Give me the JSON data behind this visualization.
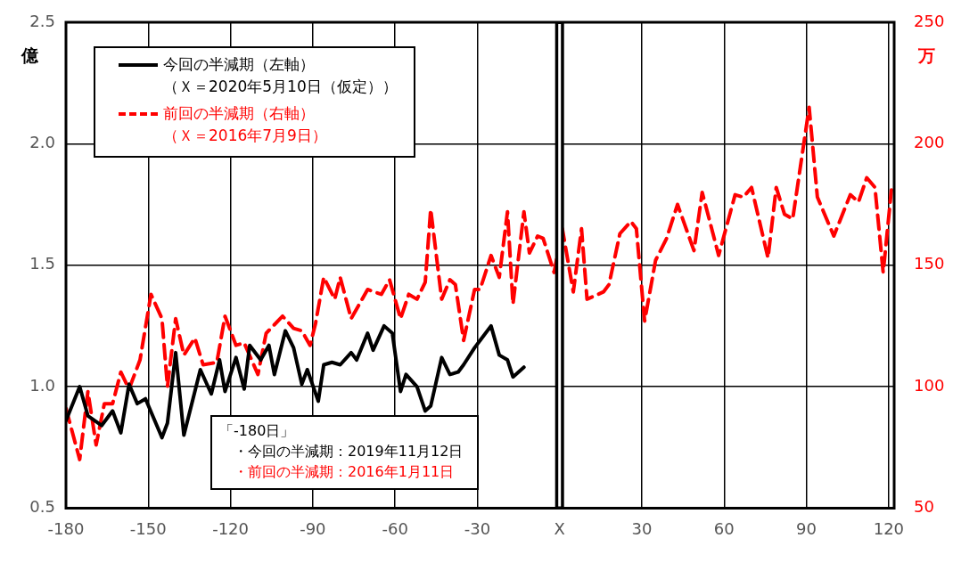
{
  "chart_data": {
    "type": "line",
    "ylabel": "億",
    "y2label": "万",
    "xlim": [
      -180,
      122
    ],
    "xticks": [
      -180,
      -150,
      -120,
      -90,
      -60,
      -30,
      {
        "value": 0,
        "label": "X"
      },
      30,
      60,
      90,
      120
    ],
    "ylim": [
      0.5,
      2.5
    ],
    "yticks": [
      0.5,
      {
        "value": 1,
        "label": "1.0"
      },
      1.5,
      {
        "value": 2,
        "label": "2.0"
      },
      2.5
    ],
    "y2lim": [
      50,
      250
    ],
    "y2ticks": [
      50,
      100,
      150,
      200,
      250
    ],
    "grid": true,
    "legend": "top left",
    "marker": "none",
    "ref_lines": [
      {
        "axis": "x",
        "value": 0,
        "color": "#000000"
      }
    ],
    "annotations": [
      "（Ｘ＝2020年5月10日（仮定））",
      "（Ｘ＝2016年7月9日）",
      "「-180日」",
      "・今回の半減期：2019年11月12日",
      "・前回の半減期：2016年1月11日"
    ],
    "series": [
      {
        "name": "今回の半減期（左軸）",
        "color": "#000000",
        "line_style": "solid",
        "x": [
          -180,
          -175,
          -172,
          -167,
          -163,
          -160,
          -157,
          -154,
          -151,
          -145,
          -143,
          -140,
          -137,
          -131,
          -127,
          -124,
          -122,
          -118,
          -115,
          -113,
          -109,
          -106,
          -104,
          -100,
          -97,
          -94,
          -92,
          -88,
          -86,
          -83,
          -80,
          -76,
          -74,
          -70,
          -68,
          -64,
          -61,
          -58,
          -56,
          -52,
          -49,
          -47,
          -43,
          -40,
          -37,
          -35,
          -31,
          -29,
          -25,
          -22,
          -19,
          -17,
          -13
        ],
        "values": [
          0.86,
          1.0,
          0.88,
          0.84,
          0.9,
          0.81,
          1.01,
          0.93,
          0.95,
          0.79,
          0.85,
          1.14,
          0.8,
          1.07,
          0.97,
          1.11,
          0.98,
          1.12,
          0.99,
          1.17,
          1.11,
          1.17,
          1.05,
          1.23,
          1.16,
          1.01,
          1.07,
          0.94,
          1.09,
          1.1,
          1.09,
          1.14,
          1.11,
          1.22,
          1.15,
          1.25,
          1.22,
          0.98,
          1.05,
          1.0,
          0.9,
          0.92,
          1.12,
          1.05,
          1.06,
          1.09,
          1.16,
          1.19,
          1.25,
          1.13,
          1.11,
          1.04,
          1.08
        ]
      },
      {
        "name": "前回の半減期（右軸）",
        "color": "#ff0000",
        "line_style": "dashed",
        "axis": "y2",
        "x": [
          -180,
          -175,
          -172,
          -169,
          -166,
          -163,
          -160,
          -157,
          -153,
          -149,
          -145,
          -143,
          -140,
          -137,
          -133,
          -130,
          -125,
          -122,
          -118,
          -115,
          -110,
          -107,
          -101,
          -97,
          -94,
          -91,
          -89,
          -86,
          -82,
          -80,
          -76,
          -70,
          -65,
          -62,
          -58,
          -55,
          -52,
          -49,
          -47,
          -43,
          -40,
          -38,
          -35,
          -31,
          -29,
          -25,
          -22,
          -19,
          -17,
          -13,
          -11,
          -8,
          -6,
          -2,
          1,
          5,
          8,
          10,
          16,
          18,
          22,
          26,
          28,
          31,
          35,
          39,
          43,
          49,
          52,
          58,
          64,
          67,
          70,
          76,
          79,
          82,
          85,
          91,
          94,
          100,
          106,
          109,
          112,
          115,
          118,
          121
        ],
        "values": [
          91,
          70,
          98,
          76,
          93,
          93,
          106,
          99,
          111,
          138,
          128,
          100,
          128,
          113,
          120,
          109,
          110,
          129,
          117,
          118,
          105,
          122,
          129,
          124,
          123,
          117,
          126,
          145,
          136,
          145,
          128,
          140,
          138,
          144,
          128,
          138,
          136,
          143,
          173,
          136,
          144,
          142,
          119,
          140,
          140,
          154,
          145,
          172,
          134,
          172,
          155,
          162,
          161,
          147,
          165,
          139,
          165,
          136,
          139,
          142,
          163,
          168,
          165,
          127,
          152,
          161,
          175,
          156,
          180,
          154,
          179,
          178,
          182,
          153,
          182,
          171,
          169,
          215,
          178,
          162,
          179,
          176,
          186,
          182,
          147,
          181
        ]
      }
    ]
  }
}
